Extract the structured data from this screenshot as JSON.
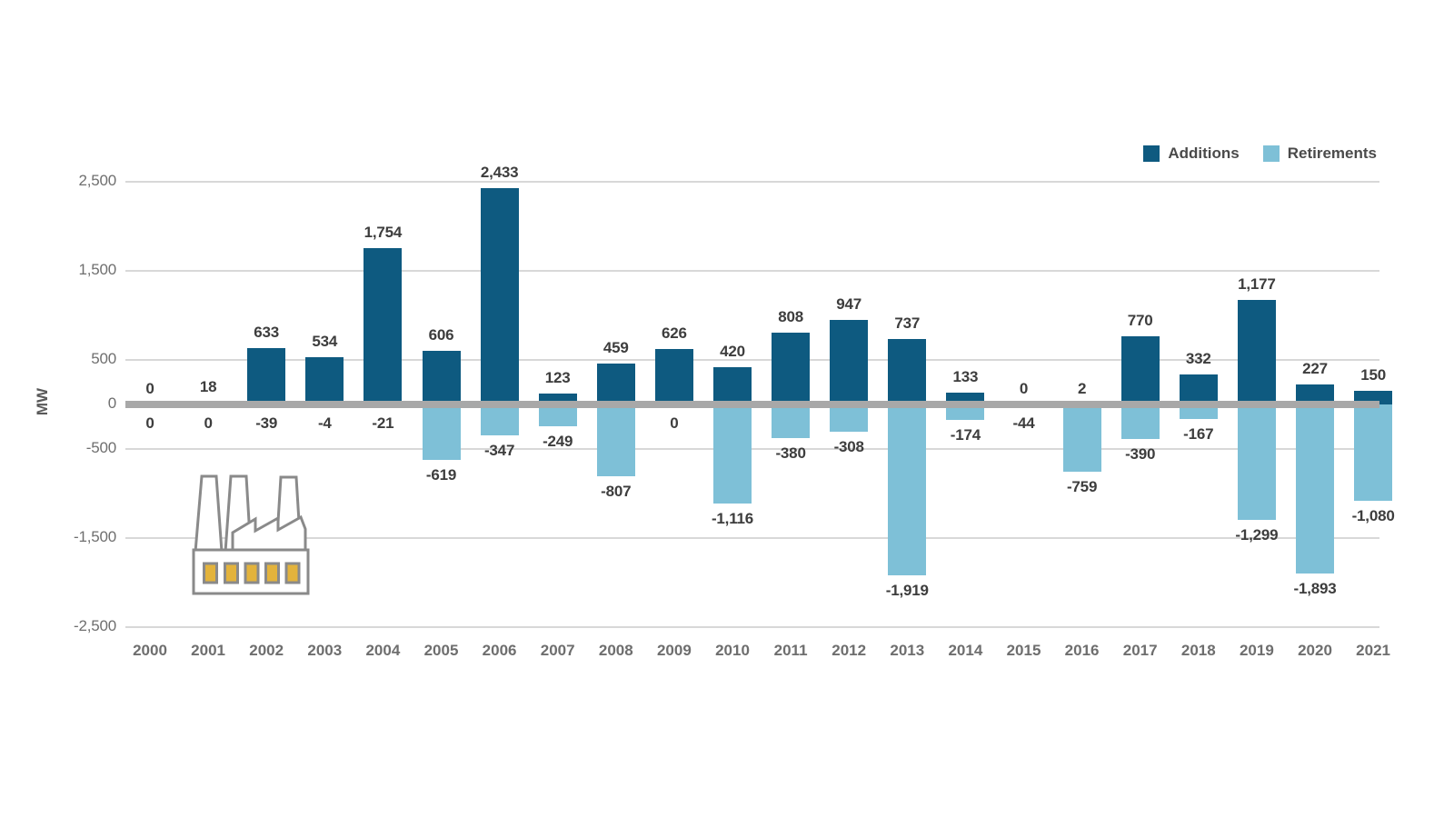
{
  "chart_data": {
    "type": "bar",
    "title": "",
    "ylabel": "MW",
    "xlabel": "",
    "categories": [
      "2000",
      "2001",
      "2002",
      "2003",
      "2004",
      "2005",
      "2006",
      "2007",
      "2008",
      "2009",
      "2010",
      "2011",
      "2012",
      "2013",
      "2014",
      "2015",
      "2016",
      "2017",
      "2018",
      "2019",
      "2020",
      "2021"
    ],
    "series": [
      {
        "name": "Additions",
        "color": "#0e5a80",
        "values": [
          0,
          18,
          633,
          534,
          1754,
          606,
          2433,
          123,
          459,
          626,
          420,
          808,
          947,
          737,
          133,
          0,
          2,
          770,
          332,
          1177,
          227,
          150
        ]
      },
      {
        "name": "Retirements",
        "color": "#7ec0d7",
        "values": [
          0,
          0,
          -39,
          -4,
          -21,
          -619,
          -347,
          -249,
          -807,
          0,
          -1116,
          -380,
          -308,
          -1919,
          -174,
          -44,
          -759,
          -390,
          -167,
          -1299,
          -1893,
          -1080
        ]
      }
    ],
    "ylim": [
      -2500,
      2500
    ],
    "yticks": [
      2500,
      1500,
      500,
      0,
      -500,
      -1500,
      -2500
    ],
    "grid": true,
    "legend_position": "top-right",
    "data_labels": true
  },
  "colors": {
    "gridline": "#d8d8d8",
    "zero_line": "#a8a8a8",
    "value_label": "#3d3d3d",
    "axis_tick": "#6f6f6f",
    "legend_text": "#4a4a4a",
    "factory_outline": "#8a8a8a",
    "factory_window": "#e3b33c",
    "background": "#ffffff"
  }
}
